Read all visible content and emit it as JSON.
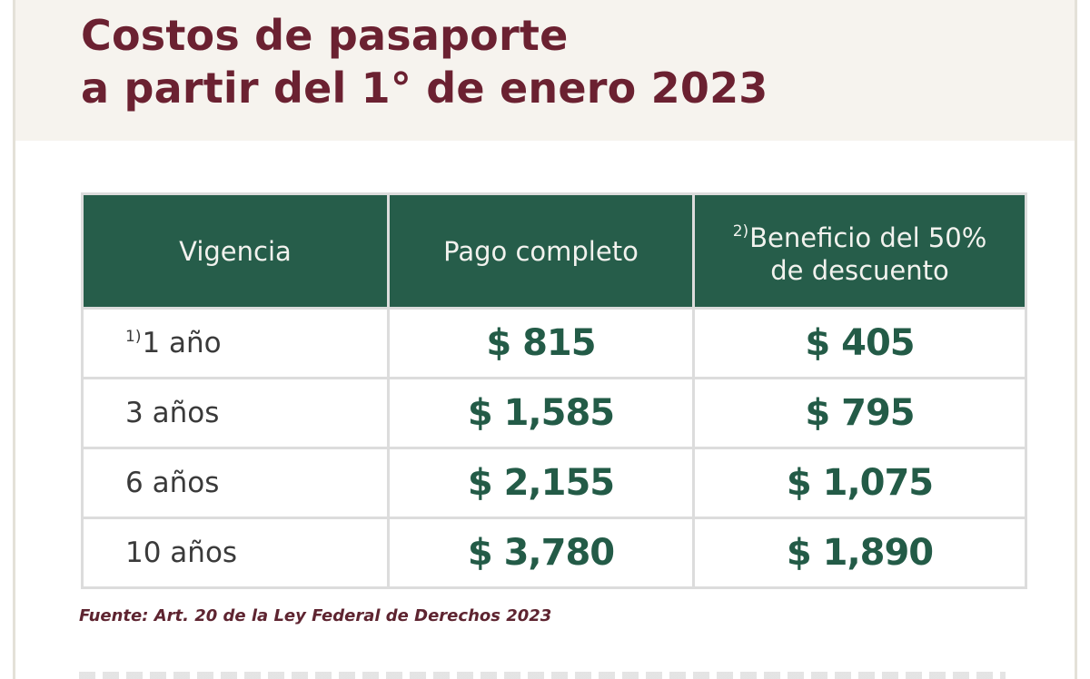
{
  "header": {
    "title_line1": "Costos de pasaporte",
    "title_line2": "a partir del 1° de enero 2023"
  },
  "table": {
    "columns": [
      {
        "label": "Vigencia",
        "footnote": ""
      },
      {
        "label": "Pago completo",
        "footnote": ""
      },
      {
        "label_line1": "Beneficio del 50%",
        "label_line2": "de descuento",
        "footnote": "2)"
      }
    ],
    "rows": [
      {
        "vigencia": "1 año",
        "footnote": "1)",
        "pago_completo": "$ 815",
        "descuento": "$ 405"
      },
      {
        "vigencia": "3 años",
        "footnote": "",
        "pago_completo": "$ 1,585",
        "descuento": "$ 795"
      },
      {
        "vigencia": "6 años",
        "footnote": "",
        "pago_completo": "$ 2,155",
        "descuento": "$ 1,075"
      },
      {
        "vigencia": "10 años",
        "footnote": "",
        "pago_completo": "$ 3,780",
        "descuento": "$ 1,890"
      }
    ]
  },
  "source": "Fuente: Art. 20 de la Ley Federal de Derechos 2023",
  "colors": {
    "title": "#6b2131",
    "header_band": "#f6f3ee",
    "table_header": "#265d4a",
    "price_text": "#235b47",
    "source_text": "#5e2430"
  }
}
